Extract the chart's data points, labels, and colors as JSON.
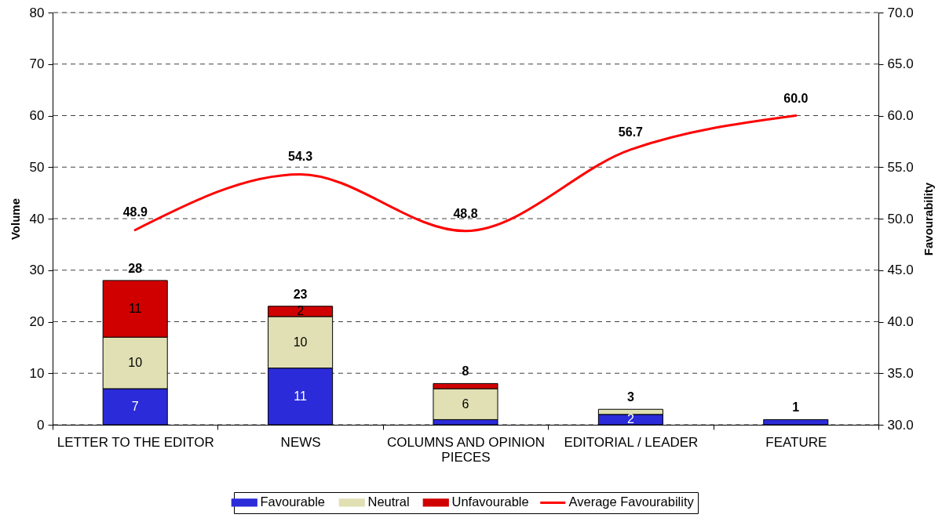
{
  "chart_data": {
    "type": "bar",
    "stacked": true,
    "ylabel": "Volume",
    "y2label": "Favourability",
    "categories": [
      "LETTER TO THE EDITOR",
      "NEWS",
      "COLUMNS AND OPINION PIECES",
      "EDITORIAL / LEADER",
      "FEATURE"
    ],
    "series": [
      {
        "name": "Favourable",
        "color": "#2b2bd9",
        "values": [
          7,
          11,
          1,
          2,
          1
        ],
        "value_labels": [
          "7",
          "11",
          null,
          "2",
          null
        ]
      },
      {
        "name": "Neutral",
        "color": "#e0e0b4",
        "values": [
          10,
          10,
          6,
          1,
          null
        ],
        "value_labels": [
          "10",
          "10",
          "6",
          null,
          null
        ]
      },
      {
        "name": "Unfavourable",
        "color": "#d00000",
        "values": [
          11,
          2,
          1,
          null,
          null
        ],
        "value_labels": [
          "11",
          "2",
          null,
          null,
          null
        ]
      },
      {
        "name": "Average Favourability",
        "type": "line",
        "axis": "y2",
        "line_style": "solid",
        "color": "#ff0000",
        "values": [
          48.9,
          54.3,
          48.8,
          56.7,
          60.0
        ],
        "value_labels": [
          "48.9",
          "54.3",
          "48.8",
          "56.7",
          "60.0"
        ]
      }
    ],
    "totals": [
      "28",
      "23",
      "8",
      "3",
      "1"
    ],
    "ylim": [
      0,
      80
    ],
    "yticks": [
      0,
      10,
      20,
      30,
      40,
      50,
      60,
      70,
      80
    ],
    "y2lim": [
      30,
      70
    ],
    "y2ticks": [
      {
        "value": 30,
        "label": "30.0"
      },
      {
        "value": 35,
        "label": "35.0"
      },
      {
        "value": 40,
        "label": "40.0"
      },
      {
        "value": 45,
        "label": "45.0"
      },
      {
        "value": 50,
        "label": "50.0"
      },
      {
        "value": 55,
        "label": "55.0"
      },
      {
        "value": 60,
        "label": "60.0"
      },
      {
        "value": 65,
        "label": "65.0"
      },
      {
        "value": 70,
        "label": "70.0"
      }
    ],
    "grid": "y",
    "legend": "bottom"
  }
}
